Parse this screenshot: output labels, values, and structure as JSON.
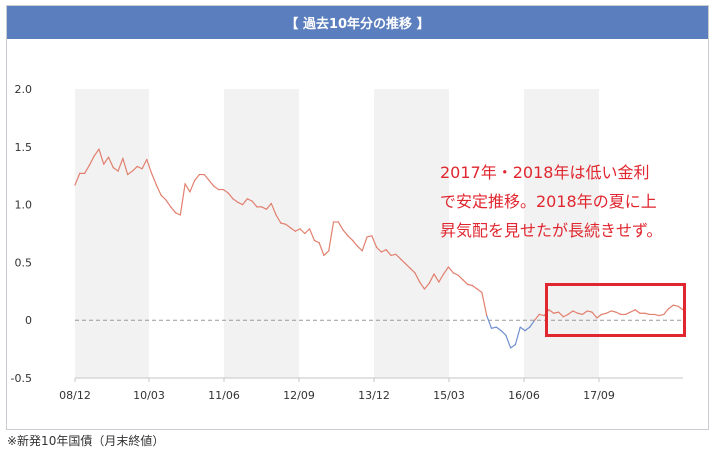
{
  "header": {
    "title": "【 過去10年分の推移 】"
  },
  "footnote": "※新発10年国債（月末終値）",
  "annotation": {
    "lines": [
      "2017年・2018年は低い金利",
      "で安定推移。2018年の夏に上",
      "昇気配を見せたが長続きせず。"
    ]
  },
  "colors": {
    "header": "#5b7fbe",
    "positive_line": "#e2806f",
    "negative_line": "#6f8fce",
    "annotation": "#e0262f",
    "shade": "#f2f2f2"
  },
  "chart_data": {
    "type": "line",
    "title": "【 過去10年分の推移 】",
    "xlabel": "",
    "ylabel": "",
    "ylim": [
      -0.5,
      2.0
    ],
    "yticks": [
      "2.0",
      "1.5",
      "1.0",
      "0.5",
      "0",
      "-0.5"
    ],
    "xticks": [
      "08/12",
      "10/03",
      "11/06",
      "12/09",
      "13/12",
      "15/03",
      "16/06",
      "17/09"
    ],
    "zero_line": "dashed",
    "series": [
      {
        "values": [
          1.17,
          1.27,
          1.27,
          1.34,
          1.42,
          1.48,
          1.35,
          1.41,
          1.32,
          1.29,
          1.4,
          1.26,
          1.29,
          1.33,
          1.31,
          1.39,
          1.27,
          1.17,
          1.08,
          1.04,
          0.98,
          0.93,
          0.91,
          1.18,
          1.11,
          1.21,
          1.26,
          1.26,
          1.21,
          1.16,
          1.13,
          1.13,
          1.1,
          1.05,
          1.02,
          1.0,
          1.05,
          1.03,
          0.98,
          0.98,
          0.96,
          1.01,
          0.91,
          0.84,
          0.83,
          0.8,
          0.77,
          0.79,
          0.75,
          0.79,
          0.69,
          0.67,
          0.56,
          0.6,
          0.85,
          0.85,
          0.78,
          0.73,
          0.69,
          0.64,
          0.6,
          0.72,
          0.73,
          0.63,
          0.59,
          0.61,
          0.56,
          0.57,
          0.53,
          0.49,
          0.45,
          0.41,
          0.33,
          0.27,
          0.32,
          0.4,
          0.33,
          0.4,
          0.46,
          0.41,
          0.39,
          0.35,
          0.31,
          0.3,
          0.27,
          0.24,
          0.04,
          -0.07,
          -0.06,
          -0.09,
          -0.13,
          -0.24,
          -0.21,
          -0.06,
          -0.09,
          -0.06,
          0.0,
          0.05,
          0.04,
          0.09,
          0.06,
          0.07,
          0.03,
          0.05,
          0.08,
          0.06,
          0.05,
          0.08,
          0.07,
          0.02,
          0.05,
          0.06,
          0.08,
          0.07,
          0.05,
          0.05,
          0.07,
          0.09,
          0.06,
          0.06,
          0.05,
          0.05,
          0.04,
          0.05,
          0.1,
          0.13,
          0.12,
          0.09
        ]
      }
    ]
  }
}
